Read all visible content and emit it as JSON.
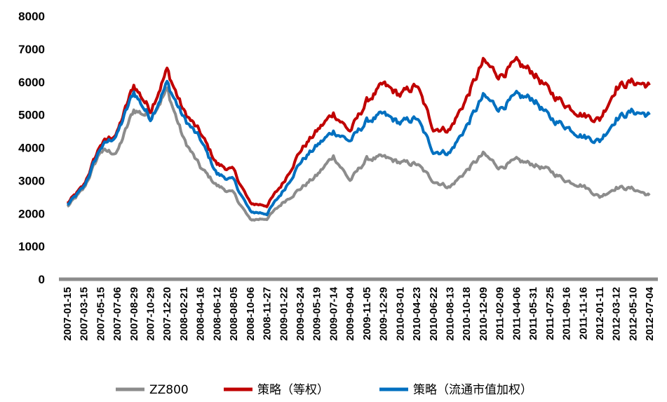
{
  "chart_data": {
    "type": "line",
    "title": "",
    "xlabel": "",
    "ylabel": "",
    "ylim": [
      0,
      8000
    ],
    "yticks": [
      "0",
      "1000",
      "2000",
      "3000",
      "4000",
      "5000",
      "6000",
      "7000",
      "8000"
    ],
    "x_tick_labels": [
      "2007-01-15",
      "2007-03-15",
      "2007-05-15",
      "2007-07-06",
      "2007-08-29",
      "2007-10-29",
      "2007-12-20",
      "2008-02-21",
      "2008-04-16",
      "2008-06-12",
      "2008-08-05",
      "2008-10-06",
      "2008-11-27",
      "2009-01-22",
      "2009-03-24",
      "2009-05-19",
      "2009-07-14",
      "2009-09-04",
      "2009-11-05",
      "2009-12-29",
      "2010-03-01",
      "2010-04-23",
      "2010-06-22",
      "2010-08-13",
      "2010-10-18",
      "2010-12-09",
      "2011-02-09",
      "2011-04-06",
      "2011-05-31",
      "2011-07-25",
      "2011-09-16",
      "2011-11-16",
      "2012-01-11",
      "2012-03-12",
      "2012-05-10",
      "2012-07-04"
    ],
    "grid": false,
    "legend_position": "bottom",
    "series": [
      {
        "name": "ZZ800",
        "color": "#8c8c8c",
        "values": [
          2200,
          2750,
          3900,
          3850,
          5150,
          4950,
          5750,
          4250,
          3400,
          2850,
          2600,
          1800,
          1850,
          2350,
          2750,
          3150,
          3750,
          3000,
          3650,
          3700,
          3550,
          3500,
          3000,
          2800,
          3300,
          3800,
          3400,
          3600,
          3500,
          3300,
          3000,
          2850,
          2500,
          2800,
          2750,
          2550
        ]
      },
      {
        "name": "策略（等权）",
        "color": "#c00000",
        "values": [
          2300,
          2850,
          4100,
          4450,
          5900,
          5150,
          6350,
          5100,
          4450,
          3500,
          3300,
          2300,
          2250,
          2950,
          3900,
          4500,
          5050,
          4500,
          5400,
          5900,
          5600,
          5900,
          4600,
          4550,
          5500,
          6600,
          6200,
          6550,
          6300,
          5700,
          5300,
          5000,
          4850,
          5850,
          6000,
          5900
        ]
      },
      {
        "name": "策略（流通市值加权）",
        "color": "#0070c0",
        "values": [
          2250,
          2800,
          4000,
          4400,
          5700,
          4900,
          5950,
          4900,
          4250,
          3200,
          3000,
          2050,
          2000,
          2700,
          3550,
          4050,
          4500,
          4200,
          4800,
          5000,
          4750,
          4900,
          3900,
          3850,
          4650,
          5550,
          5200,
          5550,
          5500,
          4900,
          4650,
          4350,
          4200,
          4900,
          5100,
          5000
        ]
      }
    ]
  }
}
